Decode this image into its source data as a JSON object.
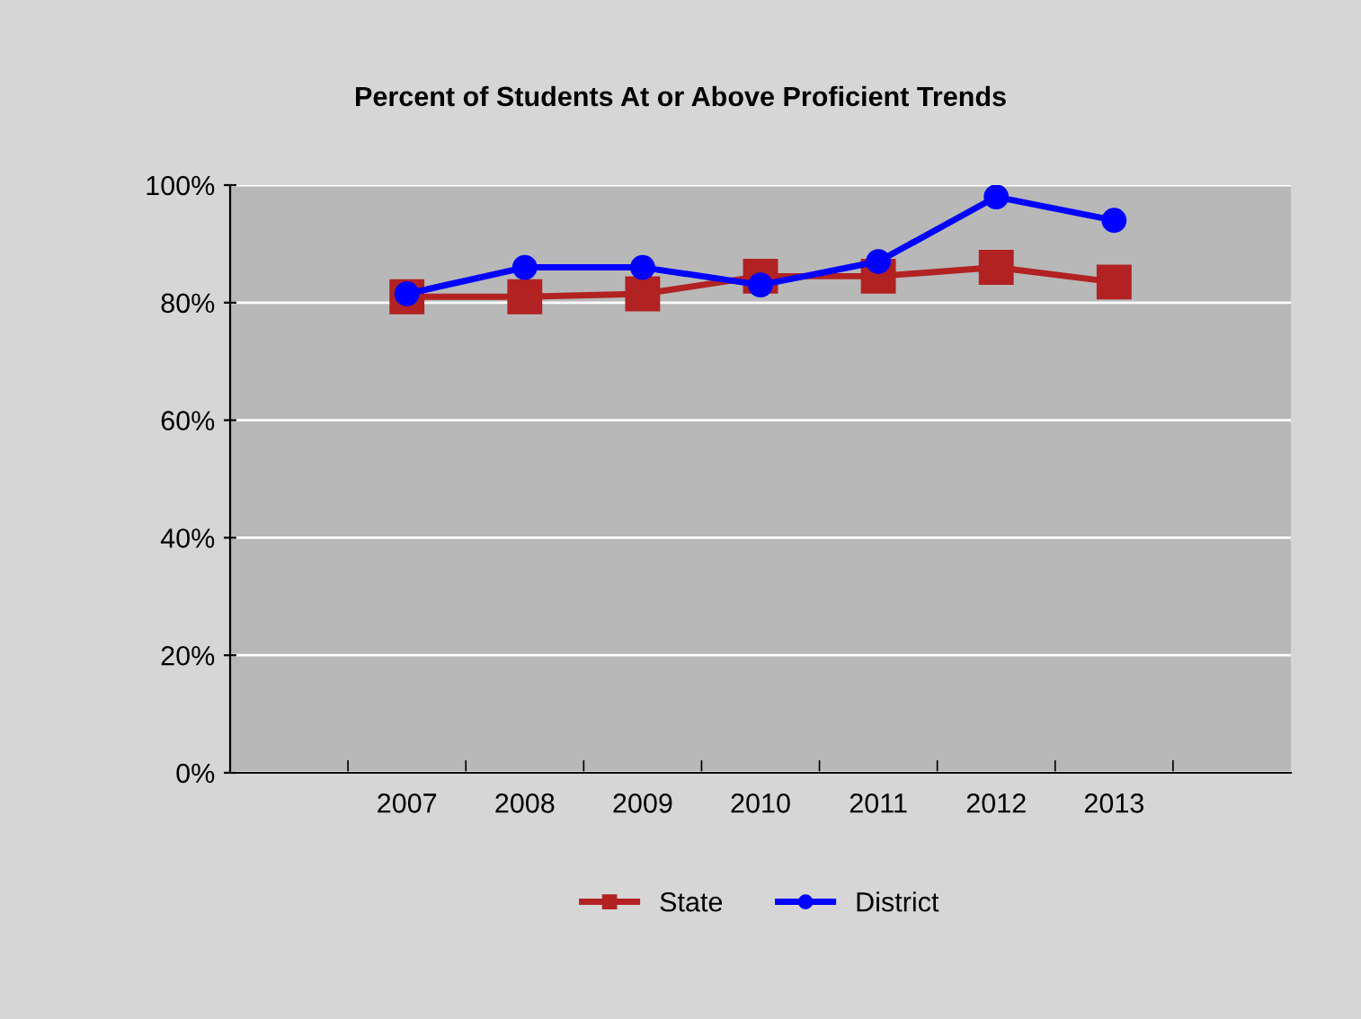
{
  "chart_data": {
    "type": "line",
    "title": "Percent of Students At or Above Proficient Trends",
    "categories": [
      null,
      "2007",
      "2008",
      "2009",
      "2010",
      "2011",
      "2012",
      "2013",
      null
    ],
    "series": [
      {
        "name": "State",
        "color": "#b22222",
        "marker": "square",
        "values": [
          null,
          81,
          81,
          81.5,
          84.5,
          84.5,
          86,
          83.5,
          null
        ]
      },
      {
        "name": "District",
        "color": "#0000ff",
        "marker": "circle",
        "values": [
          null,
          81.5,
          86,
          86,
          83,
          87,
          98,
          94,
          null
        ]
      }
    ],
    "ylim": [
      0,
      100
    ],
    "yticks": [
      {
        "value": 0,
        "label": "0%"
      },
      {
        "value": 20,
        "label": "20%"
      },
      {
        "value": 40,
        "label": "40%"
      },
      {
        "value": 60,
        "label": "60%"
      },
      {
        "value": 80,
        "label": "80%"
      },
      {
        "value": 100,
        "label": "100%"
      }
    ],
    "grid": "y",
    "legend": "bottom",
    "line_style": "solid"
  }
}
